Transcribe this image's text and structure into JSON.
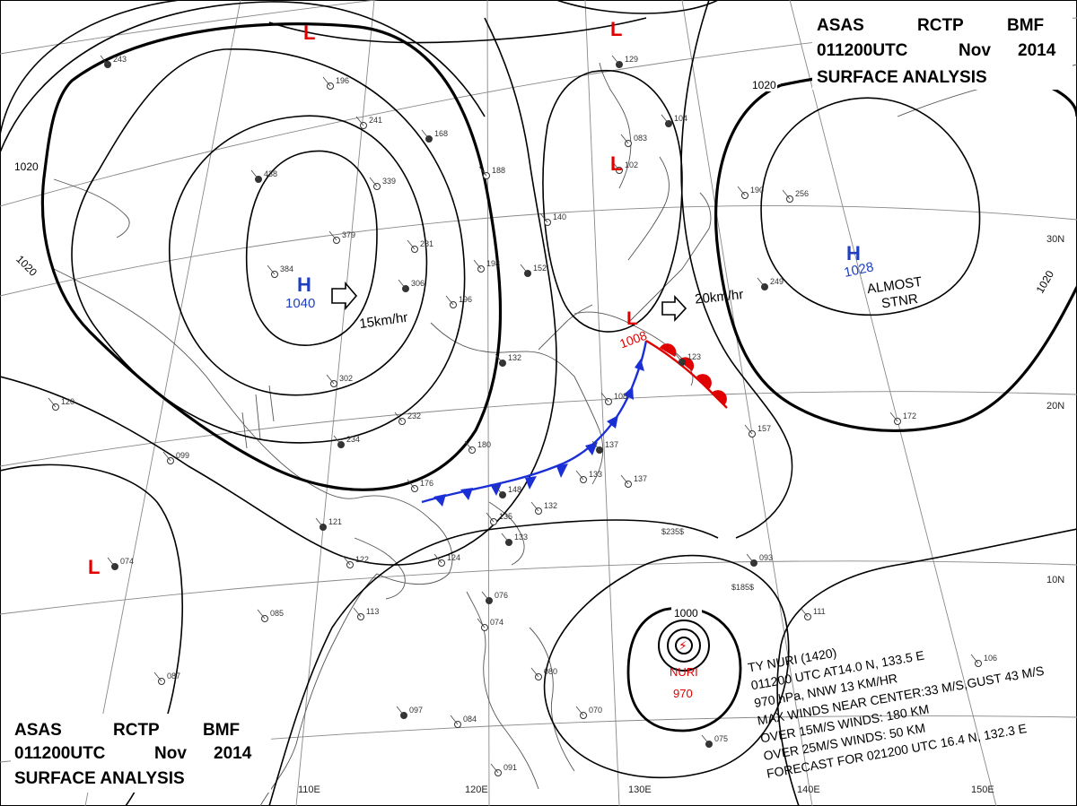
{
  "header": {
    "line1_words": [
      "ASAS",
      "RCTP",
      "BMF"
    ],
    "line2_words": [
      "011200UTC",
      "Nov",
      "2014"
    ],
    "line3": "SURFACE  ANALYSIS"
  },
  "colors": {
    "land": "#555555",
    "isobar": "#000000",
    "high_label": "#1f3fbf",
    "low_label": "#e00000",
    "cold_front": "#1a2fd6",
    "warm_front": "#e00000",
    "grid": "#777777"
  },
  "lon_labels": [
    "110E",
    "120E",
    "130E",
    "140E",
    "150E"
  ],
  "lat_labels": [
    "30N",
    "20N",
    "10N"
  ],
  "isobar_labels": [
    "1020",
    "1020",
    "1020",
    "1020",
    "1000"
  ],
  "pressure_centers": {
    "high_west": {
      "symbol": "H",
      "value": "1040"
    },
    "high_east": {
      "symbol": "H",
      "value": "1028",
      "note_lines": [
        "ALMOST",
        "STNR"
      ]
    },
    "low_japan": {
      "symbol": "L",
      "value": "1008"
    },
    "lows_misc": [
      "L",
      "L",
      "L",
      "L"
    ],
    "typhoon": {
      "name": "NURI",
      "value": "970"
    }
  },
  "motion": {
    "high_west": "15km/hr",
    "low_japan": "20km/hr"
  },
  "advisory": [
    "TY  NURI  (1420)",
    "011200  UTC  AT14.0 N, 133.5 E",
    "970 hPa, NNW  13 KM/HR",
    "MAX WINDS NEAR CENTER:33 M/S,GUST 43 M/S",
    "OVER 15M/S WINDS: 180 KM",
    "OVER 25M/S WINDS: 50 KM",
    "FORECAST FOR 021200 UTC 16.4 N, 132.3 E"
  ],
  "stations": [
    {
      "n": "243"
    },
    {
      "n": "196"
    },
    {
      "n": "241"
    },
    {
      "n": "168"
    },
    {
      "n": "339"
    },
    {
      "n": "379"
    },
    {
      "n": "438"
    },
    {
      "n": "384"
    },
    {
      "n": "281"
    },
    {
      "n": "306"
    },
    {
      "n": "196"
    },
    {
      "n": "198"
    },
    {
      "n": "152"
    },
    {
      "n": "140"
    },
    {
      "n": "188"
    },
    {
      "n": "132"
    },
    {
      "n": "302"
    },
    {
      "n": "232"
    },
    {
      "n": "234"
    },
    {
      "n": "180"
    },
    {
      "n": "176"
    },
    {
      "n": "148"
    },
    {
      "n": "132"
    },
    {
      "n": "135"
    },
    {
      "n": "133"
    },
    {
      "n": "124"
    },
    {
      "n": "122"
    },
    {
      "n": "121"
    },
    {
      "n": "113"
    },
    {
      "n": "085"
    },
    {
      "n": "074"
    },
    {
      "n": "099"
    },
    {
      "n": "120"
    },
    {
      "n": "137"
    },
    {
      "n": "137"
    },
    {
      "n": "133"
    },
    {
      "n": "123"
    },
    {
      "n": "157"
    },
    {
      "n": "172"
    },
    {
      "n": "249"
    },
    {
      "n": "190"
    },
    {
      "n": "256"
    },
    {
      "n": "093"
    },
    {
      "n": "111"
    },
    {
      "n": "106"
    },
    {
      "n": "075"
    },
    {
      "n": "091"
    },
    {
      "n": "084"
    },
    {
      "n": "097"
    },
    {
      "n": "080"
    },
    {
      "n": "070"
    },
    {
      "n": "076"
    },
    {
      "n": "074"
    },
    {
      "n": "087"
    },
    {
      "n": "129"
    },
    {
      "n": "083"
    },
    {
      "n": "102"
    },
    {
      "n": "104"
    },
    {
      "n": "108"
    }
  ],
  "ship_reports": [
    "$235$",
    "$185$"
  ]
}
